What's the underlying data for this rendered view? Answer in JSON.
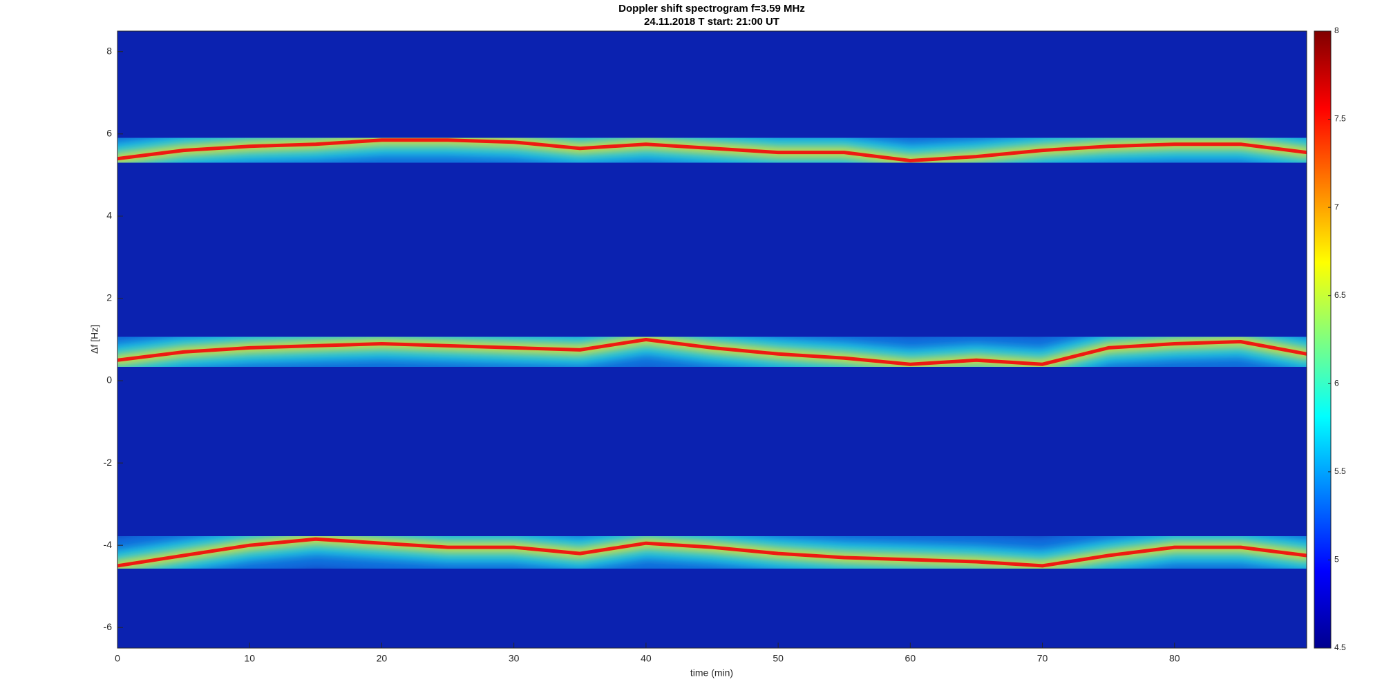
{
  "chart_data": {
    "type": "heatmap",
    "title": "Doppler shift spectrogram f=3.59 MHz",
    "subtitle": "24.11.2018   T start: 21:00 UT",
    "x_label": "time (min)",
    "y_label": "Δf [Hz]",
    "colormap": "jet",
    "background": "#0b22b0",
    "x": [
      0,
      5,
      10,
      15,
      20,
      25,
      30,
      35,
      40,
      45,
      50,
      55,
      60,
      65,
      70,
      75,
      80,
      85,
      90
    ],
    "series": [
      {
        "color": "#ee1a12",
        "values": [
          5.4,
          5.6,
          5.7,
          5.75,
          5.85,
          5.85,
          5.8,
          5.65,
          5.75,
          5.65,
          5.55,
          5.55,
          5.35,
          5.45,
          5.6,
          5.7,
          5.75,
          5.75,
          5.55
        ]
      },
      {
        "color": "#ee1a12",
        "values": [
          0.5,
          0.7,
          0.8,
          0.85,
          0.9,
          0.85,
          0.8,
          0.75,
          1.0,
          0.8,
          0.65,
          0.55,
          0.4,
          0.5,
          0.4,
          0.8,
          0.9,
          0.95,
          0.65
        ]
      },
      {
        "color": "#ee1a12",
        "values": [
          -4.5,
          -4.25,
          -4.0,
          -3.85,
          -3.95,
          -4.05,
          -4.05,
          -4.2,
          -3.95,
          -4.05,
          -4.2,
          -4.3,
          -4.35,
          -4.4,
          -4.5,
          -4.25,
          -4.05,
          -4.05,
          -4.25
        ]
      }
    ],
    "xlim": [
      0,
      90
    ],
    "xticks": [
      0,
      10,
      20,
      30,
      40,
      50,
      60,
      70,
      80
    ],
    "ylim": [
      -6.5,
      8.5
    ],
    "yticks": [
      -6,
      -4,
      -2,
      0,
      2,
      4,
      6,
      8
    ],
    "clim": [
      4.5,
      8
    ],
    "cticks": [
      4.5,
      5,
      5.5,
      6,
      6.5,
      7,
      7.5,
      8
    ]
  }
}
